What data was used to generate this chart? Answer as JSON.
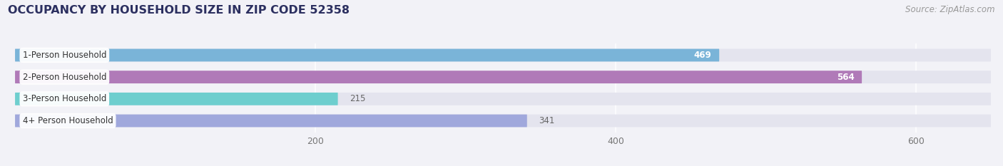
{
  "title": "OCCUPANCY BY HOUSEHOLD SIZE IN ZIP CODE 52358",
  "source": "Source: ZipAtlas.com",
  "categories": [
    "1-Person Household",
    "2-Person Household",
    "3-Person Household",
    "4+ Person Household"
  ],
  "values": [
    469,
    564,
    215,
    341
  ],
  "bar_colors": [
    "#7ab4d8",
    "#b07ab8",
    "#6ecece",
    "#a0a8dc"
  ],
  "xlim": [
    0,
    650
  ],
  "xticks": [
    200,
    400,
    600
  ],
  "bg_color": "#f2f2f7",
  "bar_bg_color": "#e4e4ee",
  "title_color": "#2c3060",
  "source_color": "#999999",
  "title_fontsize": 11.5,
  "source_fontsize": 8.5,
  "label_fontsize": 8.5,
  "value_fontsize": 8.5,
  "tick_fontsize": 9,
  "bar_height": 0.58,
  "bar_gap": 0.18
}
